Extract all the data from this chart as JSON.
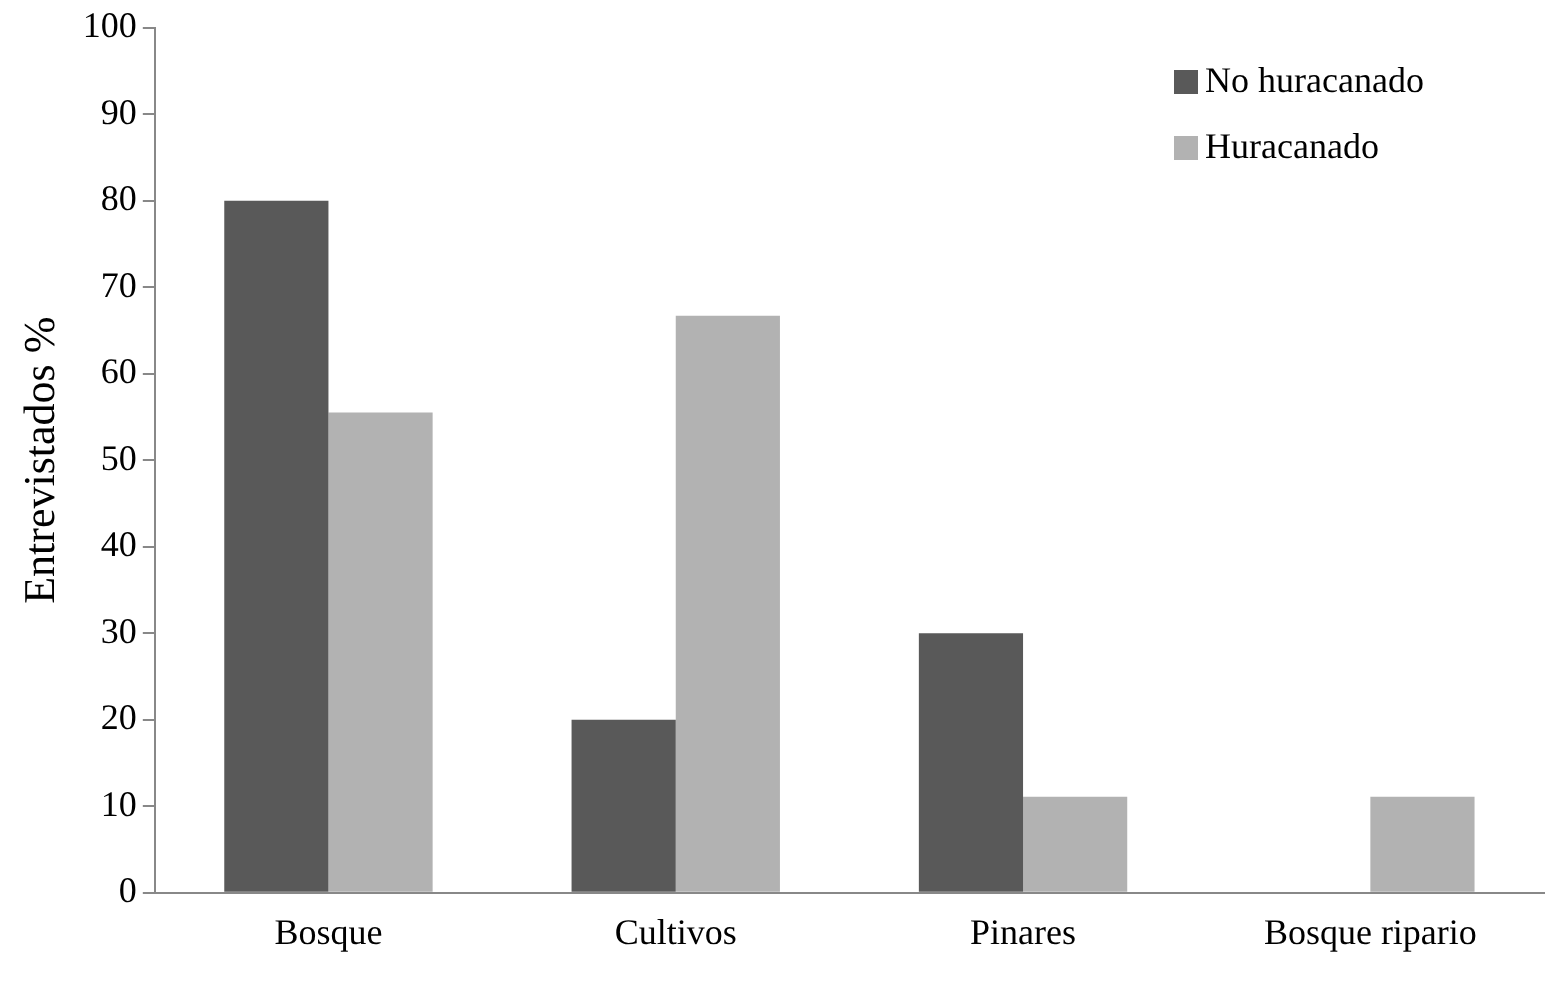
{
  "chart_data": {
    "type": "bar",
    "ylabel": "Entrevistados %",
    "categories": [
      "Bosque",
      "Cultivos",
      "Pinares",
      "Bosque ripario"
    ],
    "series": [
      {
        "name": "No huracanado",
        "color": "#595959",
        "values": [
          80,
          20,
          30,
          0
        ]
      },
      {
        "name": "Huracanado",
        "color": "#b2b2b2",
        "values": [
          55.5,
          66.7,
          11.1,
          11.1
        ]
      }
    ],
    "ylim": [
      0,
      100
    ],
    "yticks": [
      0,
      10,
      20,
      30,
      40,
      50,
      60,
      70,
      80,
      90,
      100
    ],
    "legend": "top right"
  }
}
